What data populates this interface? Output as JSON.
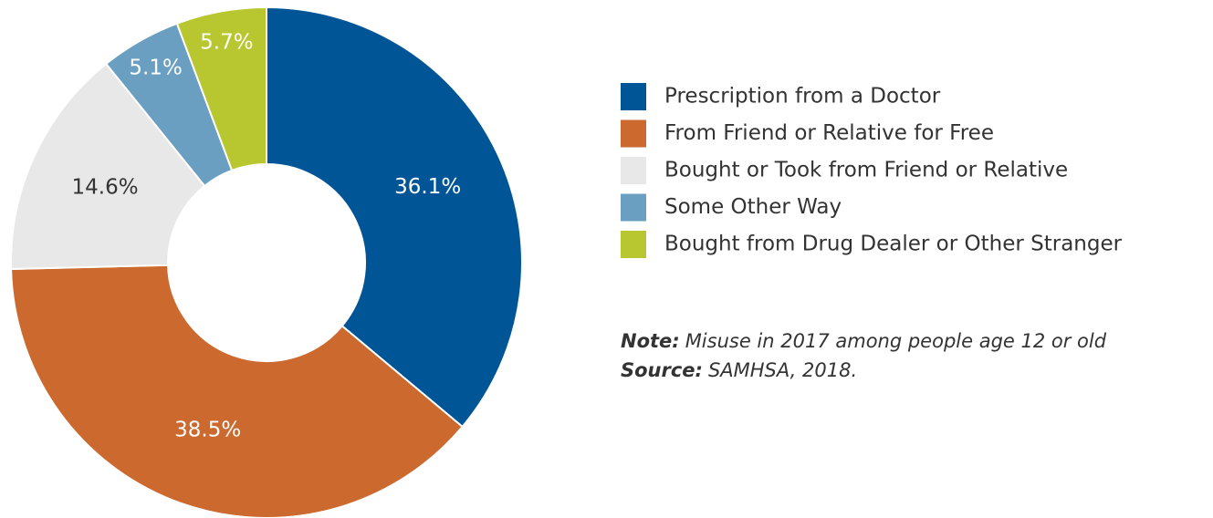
{
  "chart_data": {
    "type": "donut",
    "categories": [
      "Prescription from a Doctor",
      "From Friend or Relative for Free",
      "Bought or Took from Friend or Relative",
      "Some Other Way",
      "Bought from Drug Dealer or Other Stranger"
    ],
    "values": [
      36.1,
      38.5,
      14.6,
      5.1,
      5.7
    ],
    "value_labels": [
      "36.1%",
      "38.5%",
      "14.6%",
      "5.1%",
      "5.7%"
    ],
    "colors": [
      "#005596",
      "#cc692e",
      "#e8e8e8",
      "#6a9fc1",
      "#b8c62f"
    ],
    "label_colors": [
      "#ffffff",
      "#ffffff",
      "#333333",
      "#ffffff",
      "#ffffff"
    ],
    "legend": "right",
    "note": {
      "label": "Note:",
      "text": "Misuse in 2017 among people age 12 or old"
    },
    "source": {
      "label": "Source:",
      "text": "SAMHSA, 2018."
    }
  }
}
